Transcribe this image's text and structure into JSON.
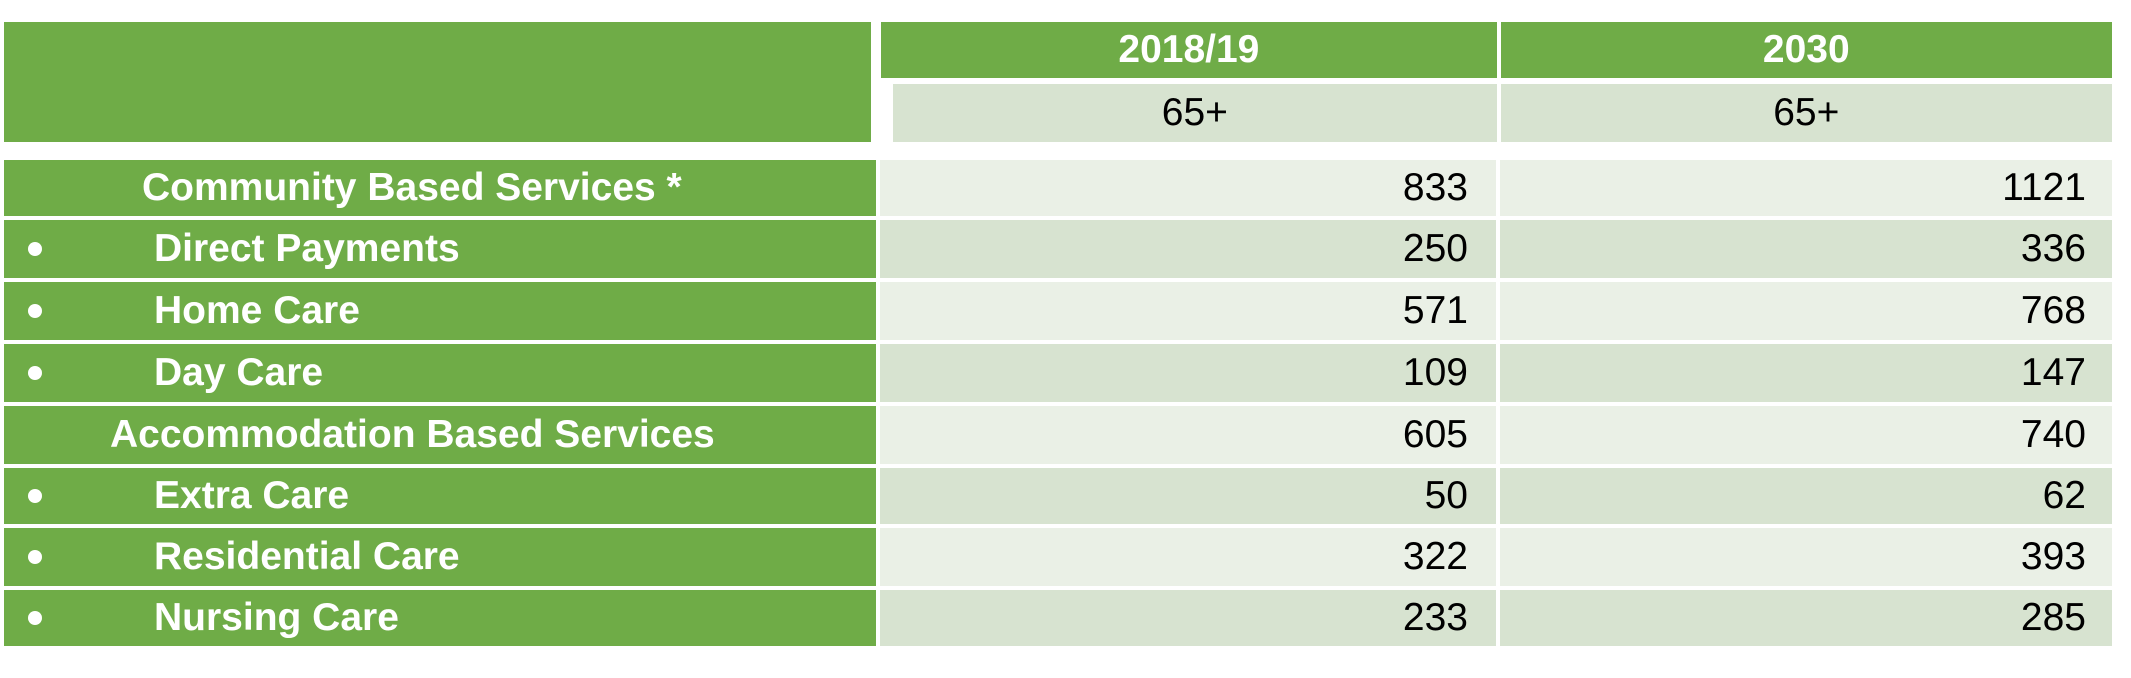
{
  "header": {
    "col_2018": "2018/19",
    "col_2030": "2030",
    "age_2018": "65+",
    "age_2030": "65+"
  },
  "rows": [
    {
      "label": "Community Based Services *",
      "v2018": "833",
      "v2030": "1121"
    },
    {
      "label": "Direct Payments",
      "v2018": "250",
      "v2030": "336"
    },
    {
      "label": "Home Care",
      "v2018": "571",
      "v2030": "768"
    },
    {
      "label": "Day Care",
      "v2018": "109",
      "v2030": "147"
    },
    {
      "label": "Accommodation Based Services",
      "v2018": "605",
      "v2030": "740"
    },
    {
      "label": "Extra Care",
      "v2018": "50",
      "v2030": "62"
    },
    {
      "label": "Residential Care",
      "v2018": "322",
      "v2030": "393"
    },
    {
      "label": "Nursing Care",
      "v2018": "233",
      "v2030": "285"
    }
  ],
  "colors": {
    "header_green": "#6fac47",
    "cell_light": "#eaf0e6",
    "cell_mid": "#d7e3d0"
  }
}
